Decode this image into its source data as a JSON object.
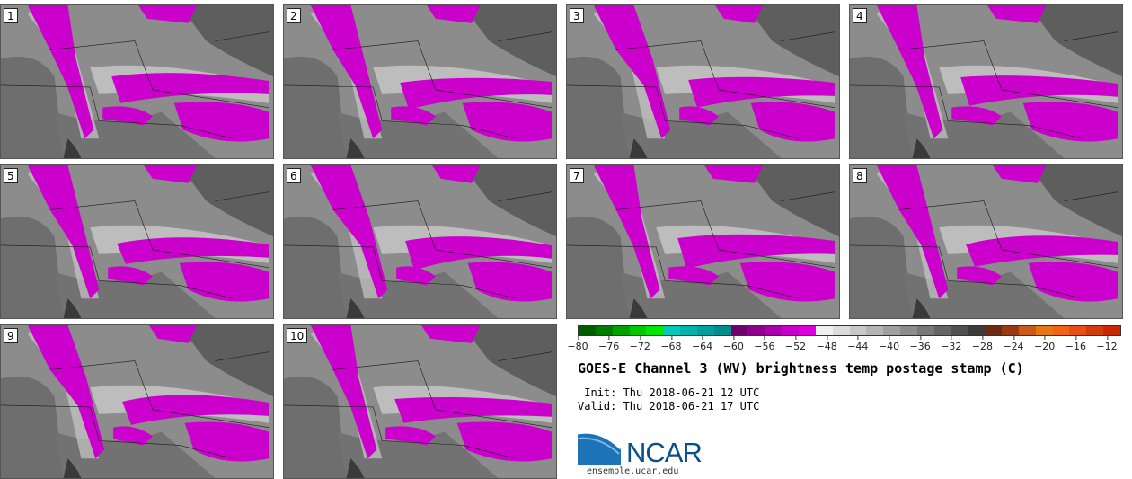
{
  "panels": [
    {
      "label": "1"
    },
    {
      "label": "2"
    },
    {
      "label": "3"
    },
    {
      "label": "4"
    },
    {
      "label": "5"
    },
    {
      "label": "6"
    },
    {
      "label": "7"
    },
    {
      "label": "8"
    },
    {
      "label": "9"
    },
    {
      "label": "10"
    }
  ],
  "colorbar": {
    "ticks": [
      "−80",
      "−76",
      "−72",
      "−68",
      "−64",
      "−60",
      "−56",
      "−52",
      "−48",
      "−44",
      "−40",
      "−36",
      "−32",
      "−28",
      "−24",
      "−20",
      "−16",
      "−12"
    ],
    "colors": [
      "#005a00",
      "#007a00",
      "#00a000",
      "#00c800",
      "#00e600",
      "#00c8b4",
      "#00b4aa",
      "#009e9e",
      "#008c8c",
      "#6e006e",
      "#8c008c",
      "#aa00aa",
      "#c800c8",
      "#dd00dd",
      "#f0f0f0",
      "#dcdcdc",
      "#c8c8c8",
      "#b4b4b4",
      "#a0a0a0",
      "#8c8c8c",
      "#787878",
      "#646464",
      "#505050",
      "#3c3c3c",
      "#6b2a14",
      "#9a3a14",
      "#c85a1e",
      "#e67814",
      "#f06414",
      "#e65014",
      "#d23c0a",
      "#c82800"
    ]
  },
  "title": "GOES-E Channel 3 (WV) brightness temp postage stamp (C)",
  "init": " Init: Thu 2018-06-21 12 UTC",
  "valid": "Valid: Thu 2018-06-21 17 UTC",
  "logo": {
    "text": "NCAR",
    "url": "ensemble.ucar.edu",
    "color": "#0b4f8a"
  },
  "panel_icon": "wv-satellite-map"
}
